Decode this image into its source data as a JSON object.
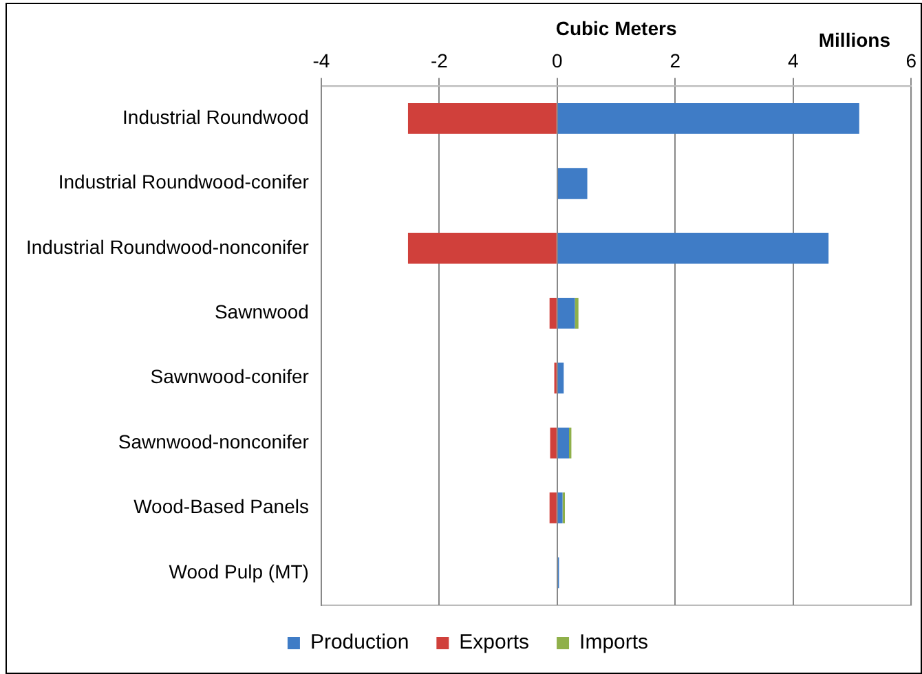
{
  "chart_data": {
    "type": "bar",
    "orientation": "horizontal",
    "stacked": true,
    "xlabel": "Cubic Meters",
    "annotations": [
      "Millions"
    ],
    "categories": [
      "Industrial Roundwood",
      "Industrial Roundwood-conifer",
      "Industrial Roundwood-nonconifer",
      "Sawnwood",
      "Sawnwood-conifer",
      "Sawnwood-nonconifer",
      "Wood-Based Panels",
      "Wood Pulp (MT)"
    ],
    "series": [
      {
        "name": "Production",
        "color": "#3f7cc6",
        "values": [
          5.12,
          0.51,
          4.6,
          0.3,
          0.11,
          0.2,
          0.09,
          0.03
        ]
      },
      {
        "name": "Exports",
        "color": "#d0403b",
        "values": [
          -2.53,
          null,
          -2.53,
          -0.13,
          -0.05,
          -0.12,
          -0.13,
          null
        ]
      },
      {
        "name": "Imports",
        "color": "#8fb04a",
        "values": [
          null,
          null,
          null,
          0.06,
          null,
          0.04,
          0.04,
          null
        ]
      }
    ],
    "xlim": [
      -4,
      6
    ],
    "xticks": [
      -4,
      -2,
      0,
      2,
      4,
      6
    ],
    "grid": "x",
    "legend": "bottom"
  }
}
